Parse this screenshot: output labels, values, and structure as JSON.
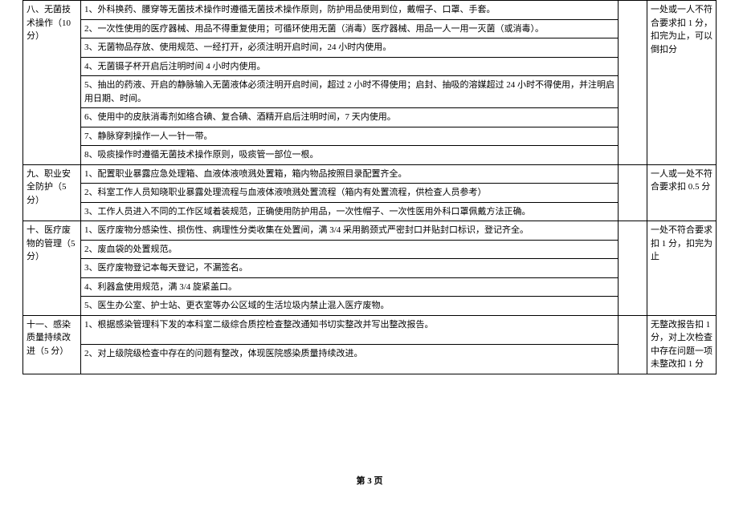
{
  "page_footer": "第 3 页",
  "sections": {
    "s8": {
      "cat": "八、无菌技术操作（10 分）",
      "items": [
        "1、外科换药、腰穿等无菌技术操作时遵循无菌技术操作原则，防护用品使用到位，戴帽子、口罩、手套。",
        "2、一次性使用的医疗器械、用品不得重复使用；可循环使用无菌（消毒）医疗器械、用品一人一用一灭菌（或消毒）。",
        "3、无菌物品存放、使用规范、一经打开，必须注明开启时间，24 小时内使用。",
        "4、无菌镊子杯开启后注明时间 4 小时内使用。",
        "5、抽出的药液、开启的静脉输入无菌液体必须注明开启时间，超过 2 小时不得使用；启封、抽吸的溶媒超过 24 小时不得使用，并注明启用日期、时间。",
        "6、使用中的皮肤消毒剂如络合碘、复合碘、酒精开启后注明时间，7 天内使用。",
        "7、静脉穿刺操作一人一针一带。",
        "8、吸痰操作时遵循无菌技术操作原则，吸痰管一部位一根。"
      ],
      "score": "一处或一人不符合要求扣 1 分，扣完为止，可以倒扣分"
    },
    "s9": {
      "cat": "九、职业安全防护（5 分）",
      "items": [
        "1、配置职业暴露应急处理箱、血液体液喷溅处置箱，箱内物品按照目录配置齐全。",
        "2、科室工作人员知晓职业暴露处理流程与血液体液喷溅处置流程（箱内有处置流程，供检查人员参考）",
        "3、工作人员进入不同的工作区域着装规范，正确使用防护用品，一次性帽子、一次性医用外科口罩佩戴方法正确。"
      ],
      "score": "一人或一处不符合要求扣 0.5 分"
    },
    "s10": {
      "cat": "十、医疗废物的管理（5 分）",
      "items": [
        "1、医疗废物分感染性、损伤性、病理性分类收集在处置间，满 3/4 采用鹅颈式严密封口并贴封口标识，登记齐全。",
        "2、废血袋的处置规范。",
        "3、医疗废物登记本每天登记，不漏签名。",
        "4、利器盒使用规范，满 3/4 旋紧盖口。",
        "5、医生办公室、护士站、更衣室等办公区域的生活垃圾内禁止混入医疗废物。"
      ],
      "score": "一处不符合要求扣 1 分，扣完为止"
    },
    "s11": {
      "cat": "十一、感染质量持续改进（5 分）",
      "items": [
        "1、根据感染管理科下发的本科室二级综合质控检查整改通知书切实整改并写出整改报告。",
        "2、对上级院级检查中存在的问题有整改，体现医院感染质量持续改进。"
      ],
      "score": "无整改报告扣 1 分，对上次检查中存在问题一项未整改扣 1 分"
    }
  }
}
